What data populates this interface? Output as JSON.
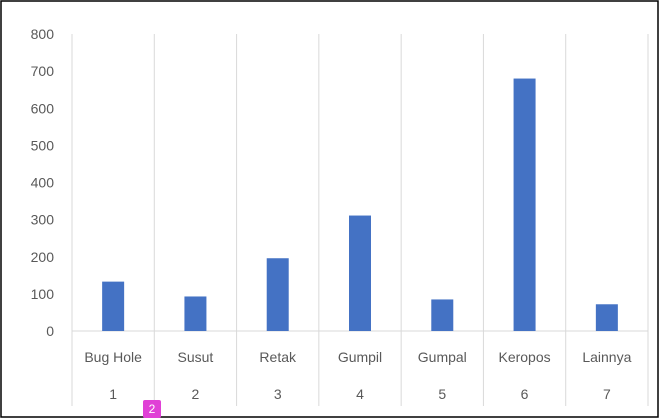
{
  "chart_data": {
    "type": "bar",
    "categories": [
      "Bug Hole",
      "Susut",
      "Retak",
      "Gumpil",
      "Gumpal",
      "Keropos",
      "Lainnya"
    ],
    "category_numbers": [
      "1",
      "2",
      "3",
      "4",
      "5",
      "6",
      "7"
    ],
    "values": [
      133,
      93,
      196,
      311,
      85,
      680,
      72
    ],
    "ylim": [
      0,
      800
    ],
    "yticks": [
      0,
      100,
      200,
      300,
      400,
      500,
      600,
      700,
      800
    ],
    "bar_color": "#4472c4",
    "grid": true,
    "title": "",
    "xlabel": "",
    "ylabel": ""
  },
  "badge": {
    "label": "2",
    "color": "#e040d6"
  }
}
